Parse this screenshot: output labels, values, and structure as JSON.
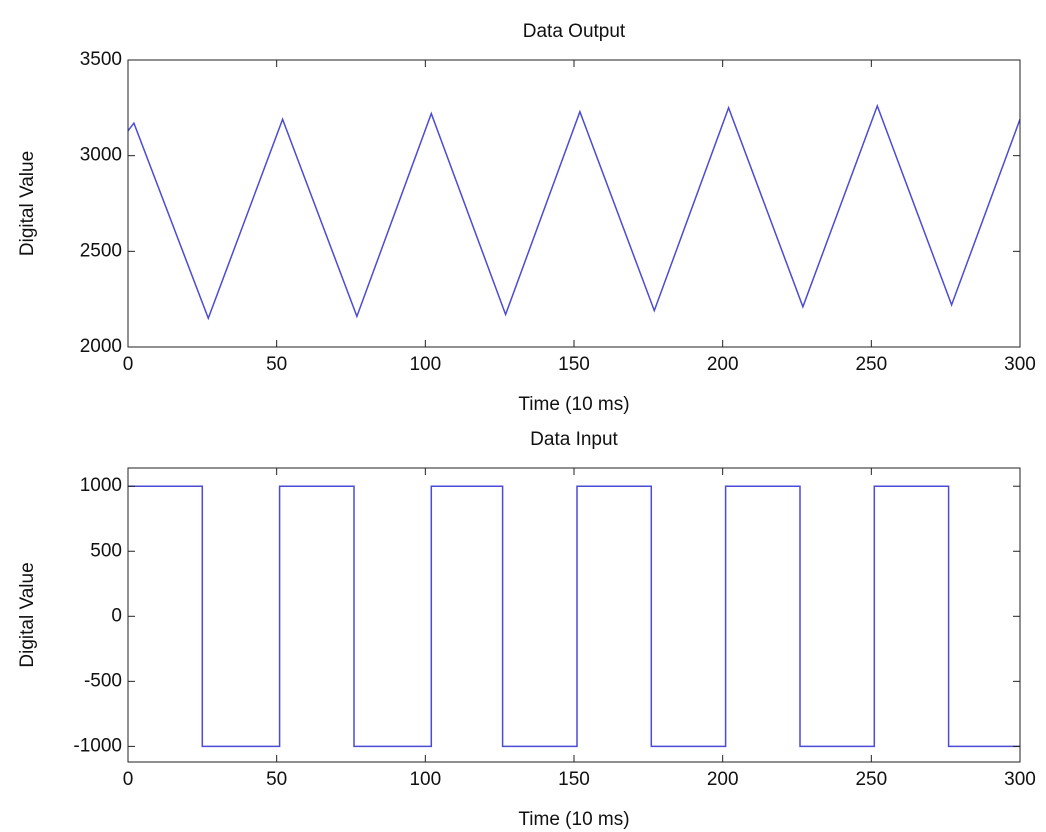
{
  "chart_data": [
    {
      "type": "line",
      "title": "Data Output",
      "x_label": "Time (10 ms)",
      "y_label": "Digital Value",
      "xlim": [
        0,
        300
      ],
      "xticks": [
        0,
        50,
        100,
        150,
        200,
        250,
        300
      ],
      "ylim": [
        2000,
        3500
      ],
      "yticks": [
        2000,
        2500,
        3000,
        3500
      ],
      "series": [
        {
          "color": "#4b4bd6",
          "x": [
            0,
            2,
            27,
            52,
            77,
            102,
            127,
            152,
            177,
            202,
            227,
            252,
            277,
            300
          ],
          "values": [
            3130,
            3170,
            2150,
            3190,
            2160,
            3220,
            2170,
            3230,
            2190,
            3250,
            2210,
            3260,
            2220,
            3190
          ]
        }
      ]
    },
    {
      "type": "line",
      "title": "Data Input",
      "x_label": "Time (10 ms)",
      "y_label": "Digital Value",
      "xlim": [
        0,
        300
      ],
      "xticks": [
        0,
        50,
        100,
        150,
        200,
        250,
        300
      ],
      "ylim": [
        -1120,
        1140
      ],
      "yticks": [
        -1000,
        -500,
        0,
        500,
        1000
      ],
      "series": [
        {
          "color": "#4b4bd6",
          "x": [
            0,
            25,
            25,
            51,
            51,
            76,
            76,
            102,
            102,
            126,
            126,
            151,
            151,
            176,
            176,
            201,
            201,
            226,
            226,
            251,
            251,
            276,
            276,
            300
          ],
          "values": [
            1000,
            1000,
            -1000,
            -1000,
            1000,
            1000,
            -1000,
            -1000,
            1000,
            1000,
            -1000,
            -1000,
            1000,
            1000,
            -1000,
            -1000,
            1000,
            1000,
            -1000,
            -1000,
            1000,
            1000,
            -1000,
            -1000
          ]
        }
      ]
    }
  ]
}
